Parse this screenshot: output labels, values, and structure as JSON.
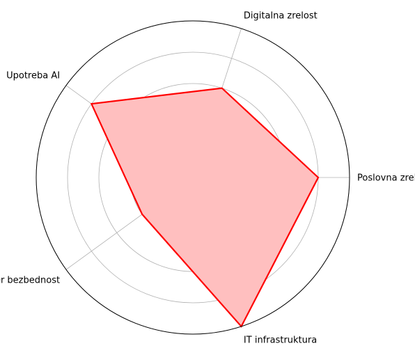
{
  "chart_data": {
    "type": "radar",
    "title": "",
    "categories": [
      "Poslovna zrelostt",
      "Digitalna zrelost",
      "Upotreba AI",
      "Sajber bezbednost",
      "IT infrastruktura"
    ],
    "series": [
      {
        "values": [
          4,
          3,
          4,
          2,
          5
        ],
        "line_color": "#ff0000",
        "fill_color": "#ffbfbf"
      }
    ],
    "rlim": [
      0,
      5
    ],
    "r_gridlines": [
      1,
      2,
      3,
      4,
      5
    ],
    "grid": true,
    "radial_tick_labels_visible": false,
    "start_angle_deg": 0,
    "direction": "counterclockwise",
    "grid_color": "#b0b0b0"
  }
}
